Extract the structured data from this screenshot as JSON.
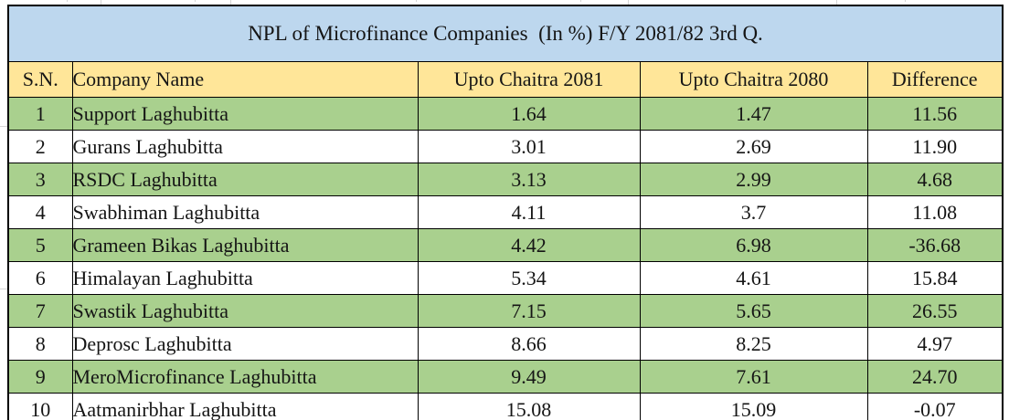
{
  "chart_data": {
    "type": "table",
    "title": "NPL of Microfinance Companies  (In %) F/Y 2081/82 3rd Q.",
    "columns": [
      "S.N.",
      "Company Name",
      "Upto Chaitra 2081",
      "Upto Chaitra 2080",
      "Difference"
    ],
    "rows": [
      [
        "1",
        "Support Laghubitta",
        "1.64",
        "1.47",
        "11.56"
      ],
      [
        "2",
        "Gurans Laghubitta",
        "3.01",
        "2.69",
        "11.90"
      ],
      [
        "3",
        "RSDC Laghubitta",
        "3.13",
        "2.99",
        "4.68"
      ],
      [
        "4",
        "Swabhiman Laghubitta",
        "4.11",
        "3.7",
        "11.08"
      ],
      [
        "5",
        "Grameen Bikas Laghubitta",
        "4.42",
        "6.98",
        "-36.68"
      ],
      [
        "6",
        "Himalayan Laghubitta",
        "5.34",
        "4.61",
        "15.84"
      ],
      [
        "7",
        "Swastik Laghubitta",
        "7.15",
        "5.65",
        "26.55"
      ],
      [
        "8",
        "Deprosc Laghubitta",
        "8.66",
        "8.25",
        "4.97"
      ],
      [
        "9",
        "MeroMicrofinance Laghubitta",
        "9.49",
        "7.61",
        "24.70"
      ],
      [
        "10",
        "Aatmanirbhar Laghubitta",
        "15.08",
        "15.09",
        "-0.07"
      ]
    ],
    "highlighted_row_indexes": [
      0,
      2,
      4,
      6,
      8
    ]
  },
  "colors": {
    "title_bg": "#BDD7EE",
    "header_bg": "#FFE699",
    "row_alt_bg": "#A9D08E",
    "row_bg": "#FFFFFF",
    "border": "#000000",
    "margin_gridline": "#D6D6D6",
    "text": "#151515"
  }
}
